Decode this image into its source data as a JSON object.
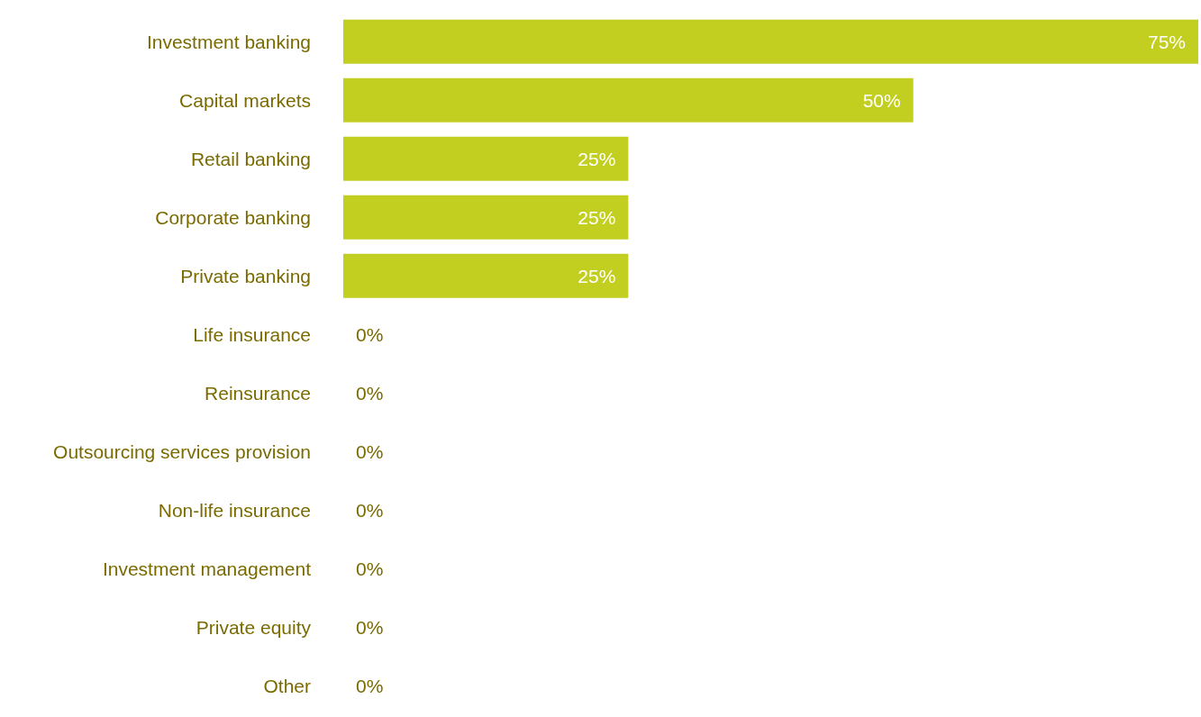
{
  "chart_data": {
    "type": "bar",
    "orientation": "horizontal",
    "categories": [
      "Investment banking",
      "Capital markets",
      "Retail banking",
      "Corporate banking",
      "Private banking",
      "Life insurance",
      "Reinsurance",
      "Outsourcing services provision",
      "Non-life insurance",
      "Investment management",
      "Private equity",
      "Other"
    ],
    "values": [
      75,
      50,
      25,
      25,
      25,
      0,
      0,
      0,
      0,
      0,
      0,
      0
    ],
    "value_labels": [
      "75%",
      "50%",
      "25%",
      "25%",
      "25%",
      "0%",
      "0%",
      "0%",
      "0%",
      "0%",
      "0%",
      "0%"
    ],
    "color": "#c2cf20"
  }
}
